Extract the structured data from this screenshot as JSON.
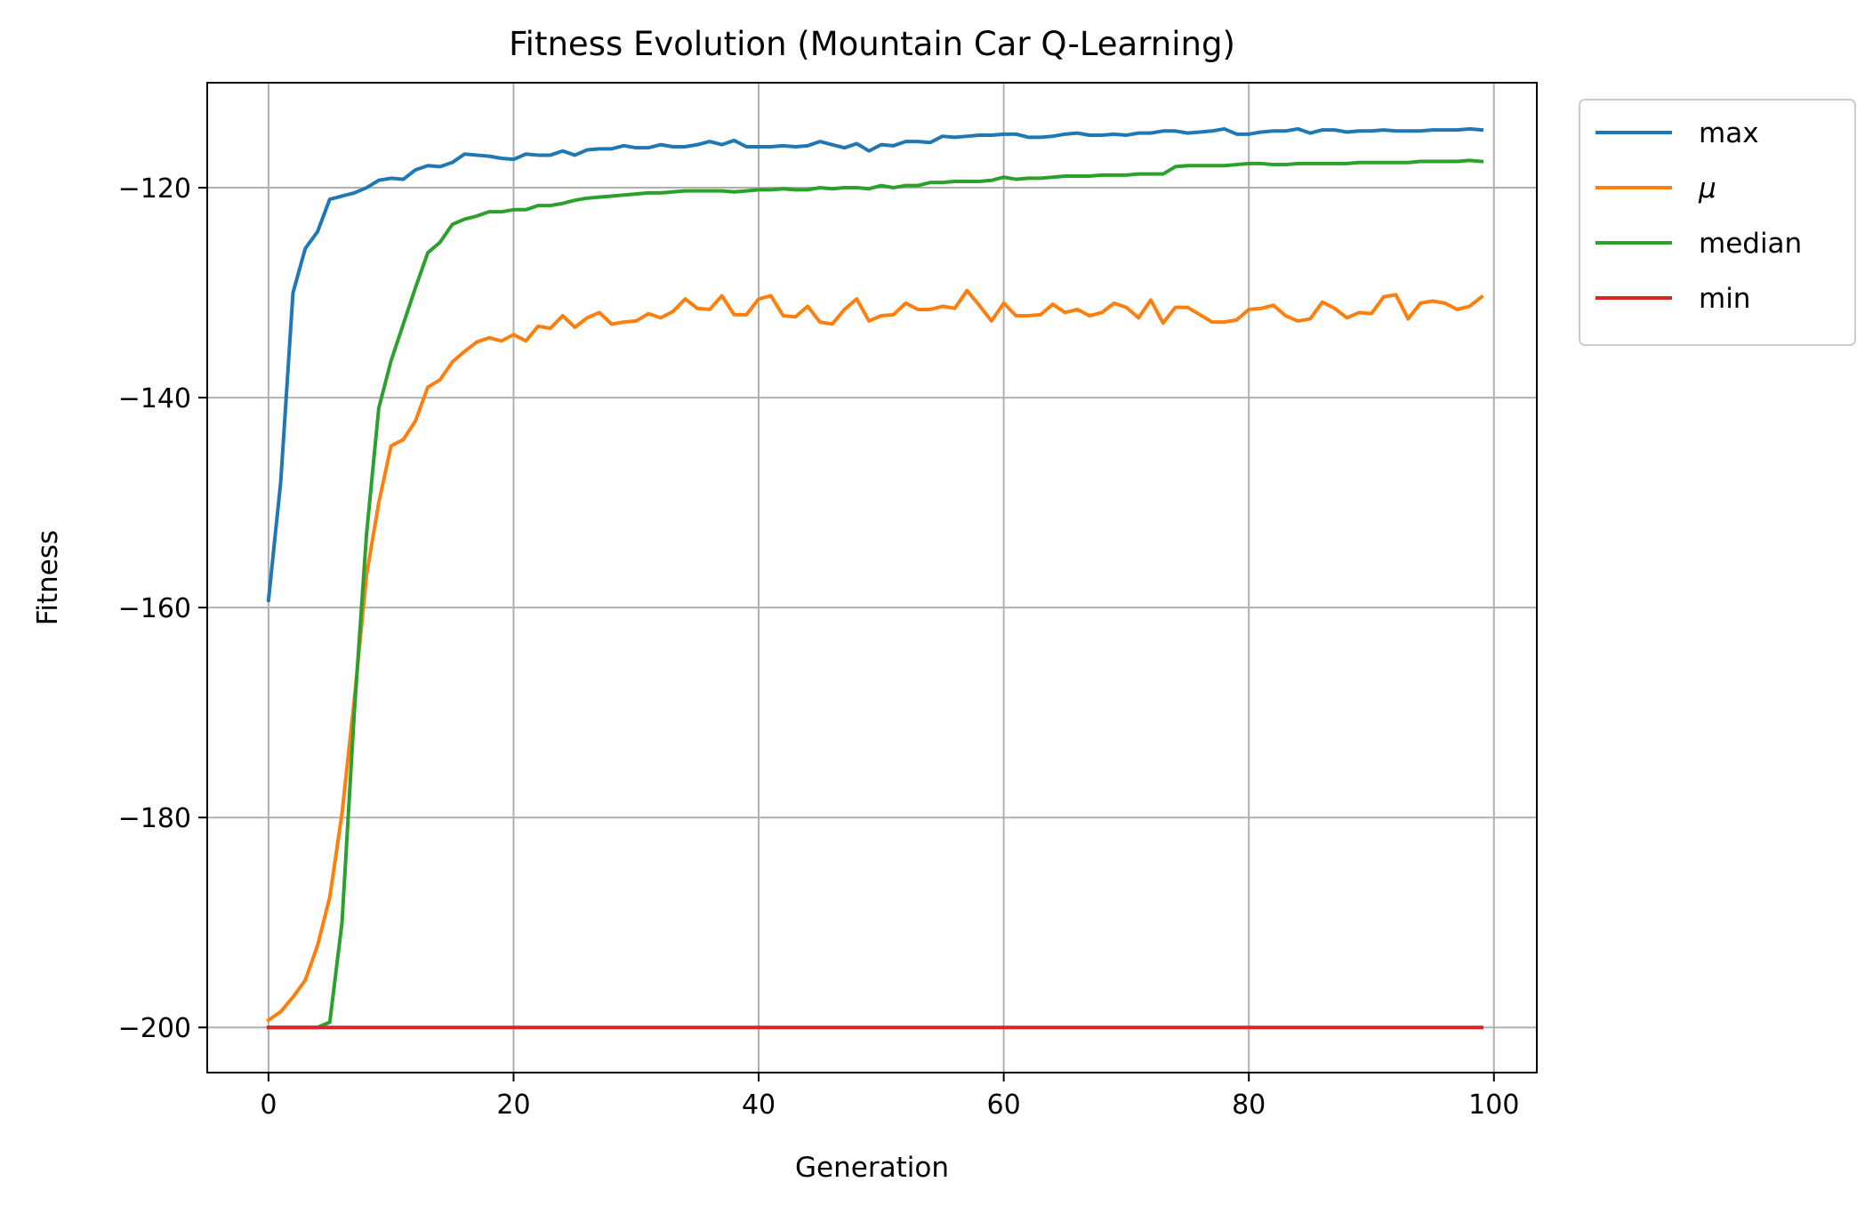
{
  "chart_data": {
    "type": "line",
    "title": "Fitness Evolution (Mountain Car Q-Learning)",
    "xlabel": "Generation",
    "ylabel": "Fitness",
    "xlim": [
      -5,
      103.5
    ],
    "ylim": [
      -204.3,
      -110
    ],
    "xticks": [
      0,
      20,
      40,
      60,
      80,
      100
    ],
    "yticks": [
      -200,
      -180,
      -160,
      -140,
      -120
    ],
    "xtick_labels": [
      "0",
      "20",
      "40",
      "60",
      "80",
      "100"
    ],
    "ytick_labels": [
      "−200",
      "−180",
      "−160",
      "−140",
      "−120"
    ],
    "grid": true,
    "legend_position": "outside-right-top",
    "series": [
      {
        "name": "max",
        "color": "#1f77b4",
        "values": [
          -159.3,
          -148.0,
          -130.0,
          -125.8,
          -124.2,
          -121.1,
          -120.8,
          -120.5,
          -120.0,
          -119.3,
          -119.1,
          -119.2,
          -118.3,
          -117.9,
          -118.0,
          -117.6,
          -116.8,
          -116.9,
          -117.0,
          -117.2,
          -117.3,
          -116.8,
          -116.9,
          -116.9,
          -116.5,
          -116.9,
          -116.4,
          -116.3,
          -116.3,
          -116.0,
          -116.2,
          -116.2,
          -115.9,
          -116.1,
          -116.1,
          -115.9,
          -115.6,
          -115.9,
          -115.5,
          -116.1,
          -116.1,
          -116.1,
          -116.0,
          -116.1,
          -116.0,
          -115.6,
          -115.9,
          -116.2,
          -115.8,
          -116.5,
          -115.9,
          -116.0,
          -115.6,
          -115.6,
          -115.7,
          -115.1,
          -115.2,
          -115.1,
          -115.0,
          -115.0,
          -114.9,
          -114.9,
          -115.2,
          -115.2,
          -115.1,
          -114.9,
          -114.8,
          -115.0,
          -115.0,
          -114.9,
          -115.0,
          -114.8,
          -114.8,
          -114.6,
          -114.6,
          -114.8,
          -114.7,
          -114.6,
          -114.4,
          -114.9,
          -114.9,
          -114.7,
          -114.6,
          -114.6,
          -114.4,
          -114.8,
          -114.5,
          -114.5,
          -114.7,
          -114.6,
          -114.6,
          -114.5,
          -114.6,
          -114.6,
          -114.6,
          -114.5,
          -114.5,
          -114.5,
          -114.4,
          -114.5
        ]
      },
      {
        "name": "μ",
        "color": "#ff7f0e",
        "values": [
          -199.3,
          -198.5,
          -197.1,
          -195.5,
          -192.2,
          -187.6,
          -179.6,
          -168.8,
          -156.9,
          -150.0,
          -144.6,
          -144.0,
          -142.2,
          -139.0,
          -138.3,
          -136.6,
          -135.6,
          -134.7,
          -134.3,
          -134.6,
          -134.0,
          -134.6,
          -133.2,
          -133.4,
          -132.2,
          -133.3,
          -132.4,
          -131.9,
          -133.0,
          -132.8,
          -132.7,
          -132.0,
          -132.4,
          -131.8,
          -130.6,
          -131.5,
          -131.6,
          -130.3,
          -132.1,
          -132.1,
          -130.6,
          -130.3,
          -132.2,
          -132.3,
          -131.3,
          -132.8,
          -133.0,
          -131.6,
          -130.6,
          -132.7,
          -132.2,
          -132.1,
          -131.0,
          -131.6,
          -131.6,
          -131.3,
          -131.5,
          -129.8,
          -131.2,
          -132.7,
          -131.0,
          -132.2,
          -132.2,
          -132.1,
          -131.1,
          -131.9,
          -131.6,
          -132.2,
          -131.9,
          -131.0,
          -131.4,
          -132.4,
          -130.7,
          -132.9,
          -131.4,
          -131.4,
          -132.1,
          -132.8,
          -132.8,
          -132.6,
          -131.6,
          -131.5,
          -131.2,
          -132.2,
          -132.7,
          -132.5,
          -130.9,
          -131.5,
          -132.4,
          -131.9,
          -132.0,
          -130.4,
          -130.2,
          -132.5,
          -131.0,
          -130.8,
          -131.0,
          -131.6,
          -131.3,
          -130.4
        ]
      },
      {
        "name": "median",
        "color": "#2ca02c",
        "values": [
          -200.0,
          -200.0,
          -200.0,
          -200.0,
          -200.0,
          -199.5,
          -190.0,
          -170.0,
          -153.0,
          -141.0,
          -136.5,
          -133.0,
          -129.5,
          -126.2,
          -125.2,
          -123.5,
          -123.0,
          -122.7,
          -122.3,
          -122.3,
          -122.1,
          -122.1,
          -121.7,
          -121.7,
          -121.5,
          -121.2,
          -121.0,
          -120.9,
          -120.8,
          -120.7,
          -120.6,
          -120.5,
          -120.5,
          -120.4,
          -120.3,
          -120.3,
          -120.3,
          -120.3,
          -120.4,
          -120.3,
          -120.2,
          -120.2,
          -120.1,
          -120.2,
          -120.2,
          -120.0,
          -120.1,
          -120.0,
          -120.0,
          -120.1,
          -119.8,
          -120.0,
          -119.8,
          -119.8,
          -119.5,
          -119.5,
          -119.4,
          -119.4,
          -119.4,
          -119.3,
          -119.0,
          -119.2,
          -119.1,
          -119.1,
          -119.0,
          -118.9,
          -118.9,
          -118.9,
          -118.8,
          -118.8,
          -118.8,
          -118.7,
          -118.7,
          -118.7,
          -118.0,
          -117.9,
          -117.9,
          -117.9,
          -117.9,
          -117.8,
          -117.7,
          -117.7,
          -117.8,
          -117.8,
          -117.7,
          -117.7,
          -117.7,
          -117.7,
          -117.7,
          -117.6,
          -117.6,
          -117.6,
          -117.6,
          -117.6,
          -117.5,
          -117.5,
          -117.5,
          -117.5,
          -117.4,
          -117.5
        ]
      },
      {
        "name": "min",
        "color": "#d62728",
        "values": [
          -200,
          -200,
          -200,
          -200,
          -200,
          -200,
          -200,
          -200,
          -200,
          -200,
          -200,
          -200,
          -200,
          -200,
          -200,
          -200,
          -200,
          -200,
          -200,
          -200,
          -200,
          -200,
          -200,
          -200,
          -200,
          -200,
          -200,
          -200,
          -200,
          -200,
          -200,
          -200,
          -200,
          -200,
          -200,
          -200,
          -200,
          -200,
          -200,
          -200,
          -200,
          -200,
          -200,
          -200,
          -200,
          -200,
          -200,
          -200,
          -200,
          -200,
          -200,
          -200,
          -200,
          -200,
          -200,
          -200,
          -200,
          -200,
          -200,
          -200,
          -200,
          -200,
          -200,
          -200,
          -200,
          -200,
          -200,
          -200,
          -200,
          -200,
          -200,
          -200,
          -200,
          -200,
          -200,
          -200,
          -200,
          -200,
          -200,
          -200,
          -200,
          -200,
          -200,
          -200,
          -200,
          -200,
          -200,
          -200,
          -200,
          -200,
          -200,
          -200,
          -200,
          -200,
          -200,
          -200,
          -200,
          -200,
          -200,
          -200
        ]
      }
    ]
  }
}
